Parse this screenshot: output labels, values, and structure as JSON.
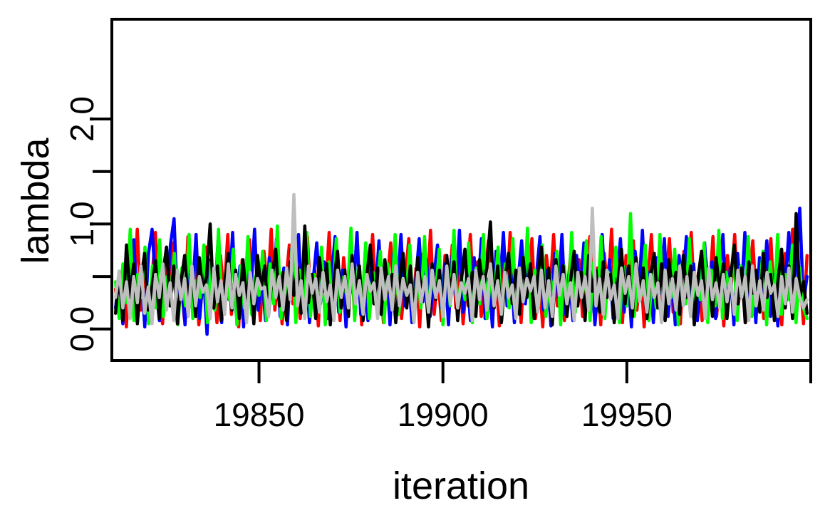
{
  "chart_data": {
    "type": "line",
    "xlabel": "iteration",
    "ylabel": "lambda",
    "xlim": [
      19810,
      20000
    ],
    "ylim": [
      -0.3,
      2.95
    ],
    "x_ticks": [
      19850,
      19900,
      19950,
      20000
    ],
    "x_tick_labels": [
      "19850",
      "19900",
      "19950",
      ""
    ],
    "y_ticks": [
      0.0,
      0.5,
      1.0,
      1.5,
      2.0
    ],
    "y_tick_labels": [
      "0.0",
      "",
      "1.0",
      "",
      "2.0"
    ],
    "grid": false,
    "legend": "none",
    "x_start": 19811,
    "x_end": 19999,
    "series": [
      {
        "color": "#ff0000",
        "values": [
          0.38,
          0.12,
          0.55,
          0.02,
          0.72,
          0.3,
          0.95,
          0.18,
          0.6,
          0.08,
          0.44,
          0.92,
          0.25,
          0.05,
          0.68,
          0.35,
          0.82,
          0.15,
          0.5,
          0.1,
          0.88,
          0.22,
          0.62,
          0.04,
          0.4,
          0.78,
          0.2,
          0.55,
          0.06,
          0.7,
          0.32,
          0.9,
          0.14,
          0.48,
          0.02,
          0.66,
          0.28,
          0.85,
          0.12,
          0.52,
          0.08,
          0.74,
          0.36,
          0.95,
          0.18,
          0.58,
          0.05,
          0.42,
          0.8,
          0.24,
          0.64,
          0.1,
          0.46,
          0.88,
          0.2,
          0.56,
          0.03,
          0.7,
          0.34,
          0.92,
          0.16,
          0.5,
          0.08,
          0.68,
          0.3,
          0.84,
          0.12,
          0.54,
          0.04,
          0.76,
          0.38,
          0.9,
          0.22,
          0.6,
          0.06,
          0.44,
          0.82,
          0.26,
          0.66,
          0.1,
          0.48,
          0.86,
          0.18,
          0.58,
          0.02,
          0.72,
          0.32,
          0.94,
          0.14,
          0.52,
          0.08,
          0.7,
          0.36,
          0.8,
          0.2,
          0.62,
          0.05,
          0.46,
          0.9,
          0.24,
          0.64,
          0.12,
          0.5,
          0.84,
          0.16,
          0.56,
          0.03,
          0.74,
          0.3,
          0.92,
          0.18,
          0.54,
          0.06,
          0.68,
          0.34,
          0.86,
          0.1,
          0.48,
          0.02,
          0.7,
          0.38,
          0.9,
          0.22,
          0.6,
          0.08,
          0.44,
          0.82,
          0.26,
          0.66,
          0.12,
          0.5,
          0.88,
          0.2,
          0.58,
          0.04,
          0.72,
          0.32,
          0.95,
          0.14,
          0.52,
          0.06,
          0.7,
          0.36,
          0.84,
          0.18,
          0.62,
          0.02,
          0.46,
          0.9,
          0.24,
          0.64,
          0.1,
          0.48,
          0.86,
          0.16,
          0.56,
          0.05,
          0.74,
          0.3,
          0.92,
          0.2,
          0.54,
          0.08,
          0.68,
          0.34,
          0.88,
          0.12,
          0.5,
          0.03,
          0.7,
          0.38,
          0.9,
          0.22,
          0.6,
          0.06,
          0.44,
          0.84,
          0.26,
          0.66,
          0.1,
          0.5,
          0.86,
          0.18,
          0.58,
          0.04,
          0.72,
          0.32,
          0.95,
          0.14,
          0.52,
          0.05,
          0.7
        ]
      },
      {
        "color": "#0000ff",
        "values": [
          0.2,
          0.5,
          0.05,
          0.68,
          0.3,
          0.85,
          0.12,
          0.56,
          0.02,
          0.72,
          0.95,
          0.4,
          0.08,
          0.62,
          0.25,
          0.8,
          1.05,
          0.15,
          0.48,
          0.04,
          0.7,
          0.32,
          0.9,
          0.1,
          0.55,
          -0.05,
          0.66,
          0.22,
          0.84,
          0.06,
          0.5,
          0.28,
          0.92,
          0.14,
          0.6,
          0.02,
          0.74,
          0.36,
          0.95,
          0.18,
          0.52,
          0.08,
          0.68,
          0.3,
          0.86,
          0.12,
          0.58,
          0.04,
          0.76,
          0.38,
          0.9,
          0.2,
          0.62,
          0.06,
          0.46,
          0.82,
          0.24,
          0.64,
          0.1,
          0.48,
          0.88,
          0.16,
          0.56,
          0.02,
          0.7,
          0.34,
          0.92,
          0.14,
          0.52,
          0.08,
          0.66,
          0.3,
          0.84,
          0.18,
          0.6,
          0.04,
          0.72,
          0.36,
          0.9,
          0.22,
          0.58,
          0.06,
          0.44,
          0.86,
          0.26,
          0.66,
          0.12,
          0.5,
          0.8,
          0.2,
          0.62,
          0.04,
          0.7,
          0.32,
          0.94,
          0.16,
          0.54,
          0.08,
          0.68,
          0.34,
          0.86,
          0.1,
          0.48,
          0.02,
          0.74,
          0.38,
          0.92,
          0.22,
          0.6,
          0.06,
          0.46,
          0.84,
          0.24,
          0.64,
          0.12,
          0.5,
          0.88,
          0.18,
          0.56,
          0.03,
          0.72,
          0.3,
          0.9,
          0.14,
          0.52,
          0.08,
          0.7,
          0.36,
          0.82,
          0.2,
          0.6,
          0.04,
          0.44,
          0.9,
          0.26,
          0.66,
          0.1,
          0.48,
          0.86,
          0.16,
          0.58,
          0.02,
          0.74,
          0.32,
          0.94,
          0.2,
          0.54,
          0.06,
          0.68,
          0.34,
          0.86,
          0.12,
          0.5,
          0.04,
          0.7,
          0.38,
          0.88,
          0.22,
          0.62,
          0.08,
          0.46,
          0.82,
          0.24,
          0.64,
          0.1,
          0.5,
          0.9,
          0.18,
          0.58,
          0.04,
          0.72,
          0.3,
          0.92,
          0.14,
          0.54,
          0.06,
          0.68,
          0.36,
          0.84,
          0.12,
          0.52,
          0.03,
          0.74,
          0.4,
          0.92,
          0.2,
          0.6,
          1.15,
          0.25,
          0.5
        ]
      },
      {
        "color": "#00ff00",
        "values": [
          0.45,
          0.1,
          0.62,
          0.25,
          0.95,
          0.08,
          0.52,
          0.3,
          0.78,
          0.05,
          0.6,
          0.2,
          0.85,
          0.12,
          0.5,
          0.35,
          0.72,
          0.04,
          0.58,
          0.22,
          0.9,
          0.1,
          0.46,
          0.3,
          0.8,
          0.06,
          0.64,
          0.18,
          0.95,
          0.12,
          0.54,
          0.28,
          0.76,
          0.04,
          0.6,
          0.2,
          0.88,
          0.14,
          0.5,
          0.32,
          0.74,
          0.08,
          0.62,
          0.24,
          0.98,
          0.1,
          0.48,
          0.3,
          0.8,
          0.06,
          0.56,
          0.2,
          0.92,
          0.12,
          0.52,
          0.34,
          0.78,
          0.04,
          0.64,
          0.22,
          0.86,
          0.16,
          0.5,
          0.28,
          0.96,
          0.08,
          0.58,
          0.2,
          0.82,
          0.1,
          0.54,
          0.3,
          0.74,
          0.06,
          0.62,
          0.24,
          0.9,
          0.14,
          0.48,
          0.32,
          0.8,
          0.08,
          0.6,
          0.2,
          0.88,
          0.12,
          0.52,
          0.3,
          0.76,
          0.04,
          0.64,
          0.22,
          0.94,
          0.16,
          0.5,
          0.28,
          0.82,
          0.06,
          0.58,
          0.24,
          0.9,
          0.1,
          0.54,
          0.32,
          0.78,
          0.08,
          0.62,
          0.2,
          0.86,
          0.14,
          0.48,
          0.3,
          0.96,
          0.06,
          0.56,
          0.22,
          0.8,
          0.12,
          0.52,
          0.34,
          0.74,
          0.04,
          0.6,
          0.2,
          0.92,
          0.16,
          0.5,
          0.28,
          0.84,
          0.08,
          0.64,
          0.24,
          0.88,
          0.1,
          0.54,
          0.3,
          0.78,
          0.06,
          0.6,
          0.22,
          1.1,
          0.12,
          0.5,
          0.32,
          0.8,
          0.08,
          0.58,
          0.2,
          0.9,
          0.14,
          0.52,
          0.3,
          0.76,
          0.04,
          0.62,
          0.24,
          0.86,
          0.16,
          0.48,
          0.28,
          0.82,
          0.06,
          0.56,
          0.22,
          0.94,
          0.1,
          0.54,
          0.34,
          0.78,
          0.08,
          0.6,
          0.2,
          0.88,
          0.12,
          0.5,
          0.3,
          0.74,
          0.04,
          0.64,
          0.22,
          0.9,
          0.14,
          0.52,
          0.28,
          0.8,
          0.06,
          0.58,
          0.2,
          0.1
        ]
      },
      {
        "color": "#000000",
        "values": [
          0.15,
          0.55,
          0.08,
          0.8,
          0.3,
          0.62,
          0.05,
          0.48,
          0.72,
          0.18,
          0.4,
          0.65,
          0.1,
          0.52,
          0.78,
          0.22,
          0.6,
          0.05,
          0.45,
          0.7,
          0.25,
          0.58,
          0.12,
          0.68,
          0.35,
          0.5,
          1.0,
          0.2,
          0.6,
          0.08,
          0.42,
          0.72,
          0.18,
          0.56,
          0.1,
          0.66,
          0.3,
          0.5,
          0.05,
          0.7,
          0.38,
          0.6,
          0.12,
          0.48,
          0.76,
          0.22,
          0.54,
          0.08,
          0.64,
          0.32,
          0.58,
          0.15,
          0.98,
          0.25,
          0.52,
          0.1,
          0.68,
          0.36,
          0.62,
          0.04,
          0.46,
          0.74,
          0.2,
          0.56,
          0.12,
          0.7,
          0.3,
          0.6,
          0.08,
          0.5,
          0.8,
          0.24,
          0.58,
          0.14,
          0.66,
          0.34,
          0.52,
          0.06,
          0.44,
          0.72,
          0.2,
          0.6,
          0.1,
          0.68,
          0.36,
          0.5,
          0.02,
          0.62,
          0.28,
          0.56,
          0.16,
          0.7,
          0.32,
          0.64,
          0.08,
          0.46,
          0.76,
          0.22,
          0.54,
          0.12,
          0.66,
          0.38,
          0.58,
          1.02,
          0.2,
          0.6,
          0.06,
          0.48,
          0.72,
          0.24,
          0.56,
          0.14,
          0.68,
          0.3,
          0.62,
          0.1,
          0.5,
          0.78,
          0.2,
          0.58,
          0.04,
          0.66,
          0.34,
          0.6,
          0.12,
          0.46,
          0.74,
          0.22,
          0.54,
          0.08,
          0.7,
          0.36,
          0.56,
          0.16,
          0.64,
          0.3,
          0.52,
          0.06,
          0.44,
          0.76,
          0.24,
          0.6,
          0.12,
          0.68,
          0.32,
          0.58,
          0.1,
          0.5,
          0.72,
          0.2,
          0.62,
          0.08,
          0.66,
          0.38,
          0.54,
          0.14,
          0.7,
          0.3,
          0.6,
          0.04,
          0.48,
          0.74,
          0.22,
          0.56,
          0.12,
          0.68,
          0.36,
          0.62,
          0.1,
          0.5,
          0.8,
          0.24,
          0.58,
          0.06,
          0.64,
          0.34,
          0.56,
          0.16,
          0.72,
          0.3,
          0.52,
          0.08,
          0.46,
          0.76,
          0.2,
          0.6,
          0.1,
          1.1,
          0.3,
          0.45,
          0.15
        ]
      },
      {
        "color": "#bebebe",
        "values": [
          0.3,
          0.55,
          0.2,
          0.45,
          0.1,
          0.5,
          0.25,
          0.6,
          0.15,
          0.4,
          0.05,
          0.52,
          0.3,
          0.62,
          0.18,
          0.44,
          0.08,
          0.56,
          0.28,
          0.48,
          0.12,
          0.6,
          0.22,
          0.5,
          0.35,
          0.42,
          0.1,
          0.58,
          0.26,
          0.46,
          0.14,
          0.62,
          0.2,
          0.52,
          0.32,
          0.44,
          0.06,
          0.54,
          0.24,
          0.48,
          0.38,
          0.4,
          0.12,
          0.56,
          0.3,
          0.5,
          0.18,
          0.58,
          0.28,
          1.28,
          0.22,
          0.46,
          0.1,
          0.6,
          0.34,
          0.48,
          0.16,
          0.54,
          0.26,
          0.42,
          0.08,
          0.56,
          0.3,
          0.5,
          0.2,
          0.62,
          0.24,
          0.46,
          0.14,
          0.52,
          0.36,
          0.44,
          0.1,
          0.58,
          0.28,
          0.5,
          0.18,
          0.6,
          0.22,
          0.48,
          0.32,
          0.42,
          0.06,
          0.54,
          0.26,
          0.5,
          0.16,
          0.56,
          0.3,
          0.46,
          0.12,
          0.6,
          0.24,
          0.52,
          0.2,
          0.44,
          0.34,
          0.48,
          0.08,
          0.56,
          0.28,
          0.5,
          0.18,
          0.62,
          0.22,
          0.46,
          0.14,
          0.54,
          0.3,
          0.42,
          0.1,
          0.58,
          0.26,
          0.48,
          0.36,
          0.5,
          0.16,
          0.56,
          0.2,
          0.46,
          0.12,
          0.6,
          0.32,
          0.52,
          0.24,
          0.44,
          0.08,
          0.54,
          0.3,
          0.5,
          0.18,
          1.15,
          0.22,
          0.48,
          0.14,
          0.56,
          0.28,
          0.42,
          0.1,
          0.58,
          0.34,
          0.5,
          0.2,
          0.62,
          0.26,
          0.46,
          0.16,
          0.52,
          0.3,
          0.44,
          0.06,
          0.56,
          0.24,
          0.48,
          0.18,
          0.6,
          0.22,
          0.5,
          0.12,
          0.54,
          0.32,
          0.46,
          0.1,
          0.58,
          0.28,
          0.44,
          0.2,
          0.52,
          0.26,
          0.48,
          0.14,
          0.56,
          0.3,
          0.5,
          0.08,
          0.6,
          0.22,
          0.46,
          0.18,
          0.54,
          0.34,
          0.42,
          0.12,
          0.5,
          0.24,
          0.58,
          0.16,
          0.48,
          0.3,
          0.2,
          0.28
        ]
      }
    ]
  }
}
